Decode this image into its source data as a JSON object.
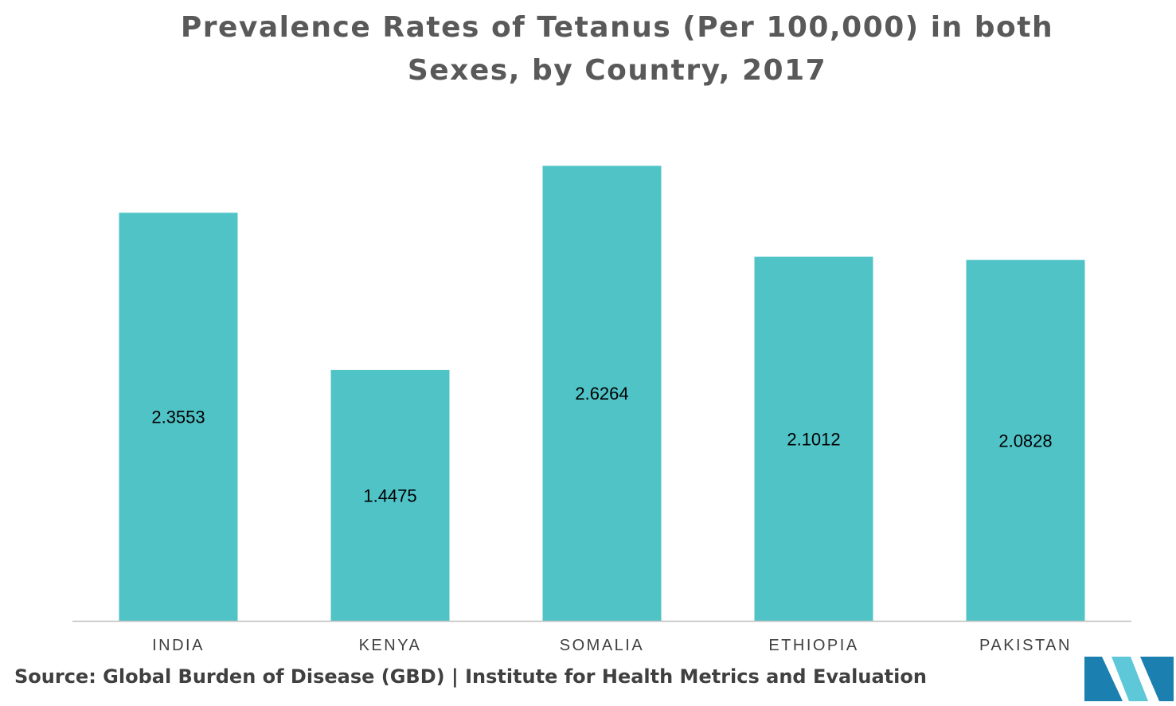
{
  "header": {
    "title": "Prevalence Rates of Tetanus (Per 100,000) in both Sexes, by Country, 2017"
  },
  "chart_data": {
    "type": "bar",
    "title": "Prevalence Rates of Tetanus (Per 100,000) in both Sexes, by Country, 2017",
    "xlabel": "",
    "ylabel": "",
    "categories": [
      "INDIA",
      "KENYA",
      "SOMALIA",
      "ETHIOPIA",
      "PAKISTAN"
    ],
    "values": [
      2.3553,
      1.4475,
      2.6264,
      2.1012,
      2.0828
    ],
    "value_labels": [
      "2.3553",
      "1.4475",
      "2.6264",
      "2.1012",
      "2.0828"
    ],
    "ylim": [
      0,
      3
    ],
    "grid": false,
    "legend": "none",
    "bar_color": "#50c3c7",
    "axis_color": "#bfbfbf"
  },
  "footer": {
    "source": "Source: Global Burden of Disease (GBD) | Institute for Health Metrics and Evaluation"
  },
  "logo": {
    "icon": "mordor-intelligence-logo",
    "colors": [
      "#1b7fb0",
      "#5ec8d8"
    ]
  }
}
